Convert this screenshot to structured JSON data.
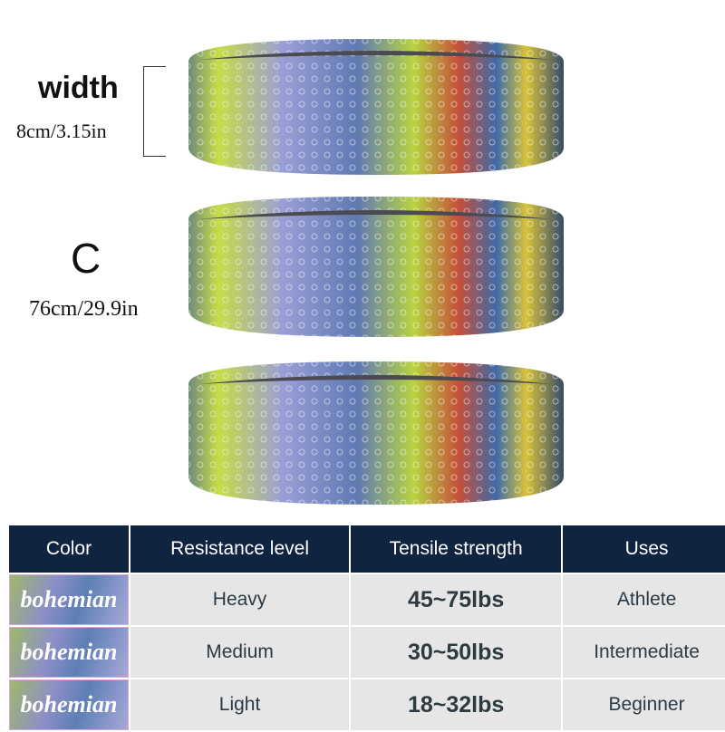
{
  "dimensions": {
    "width_label": "width",
    "width_value": "8cm/3.15in",
    "circumference_label": "C",
    "circumference_value": "76cm/29.9in"
  },
  "product": {
    "band_count": 3,
    "pattern": "bohemian mandala",
    "colors": {
      "navy": "#0f2440",
      "lime": "#c8dc48",
      "lavender": "#9a9fd6",
      "blue": "#3f6aa8"
    }
  },
  "table": {
    "headers": [
      "Color",
      "Resistance level",
      "Tensile strength",
      "Uses"
    ],
    "rows": [
      {
        "color": "bohemian",
        "level": "Heavy",
        "strength": "45~75lbs",
        "use": "Athlete"
      },
      {
        "color": "bohemian",
        "level": "Medium",
        "strength": "30~50lbs",
        "use": "Intermediate"
      },
      {
        "color": "bohemian",
        "level": "Light",
        "strength": "18~32lbs",
        "use": "Beginner"
      }
    ]
  }
}
